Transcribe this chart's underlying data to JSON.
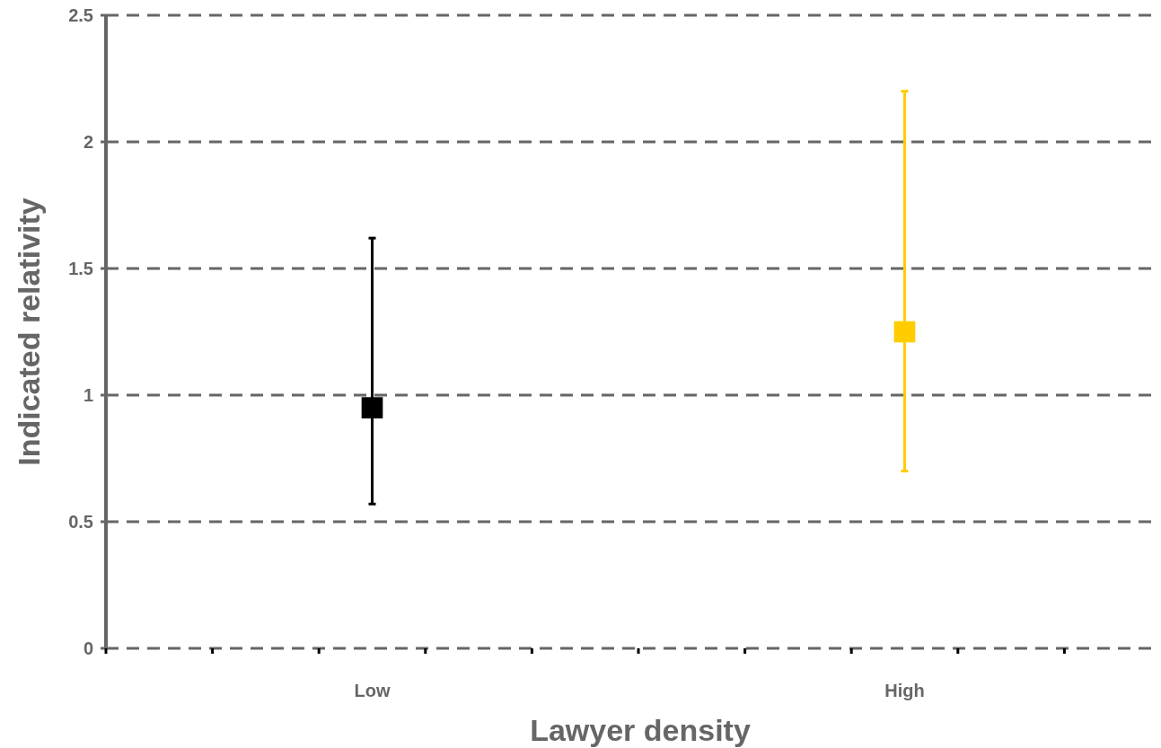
{
  "chart_data": {
    "type": "scatter",
    "xlabel": "Lawyer density",
    "ylabel": "Indicated relativity",
    "categories": [
      "Low",
      "High"
    ],
    "values": [
      0.95,
      1.25
    ],
    "errors": [
      [
        0.57,
        1.62
      ],
      [
        0.7,
        2.2
      ]
    ],
    "colors": [
      "#000000",
      "#ffcc00"
    ],
    "marker": "square",
    "ylim": [
      0,
      2.5
    ],
    "yticks": [
      0,
      0.5,
      1,
      1.5,
      2,
      2.5
    ],
    "grid": "y"
  }
}
